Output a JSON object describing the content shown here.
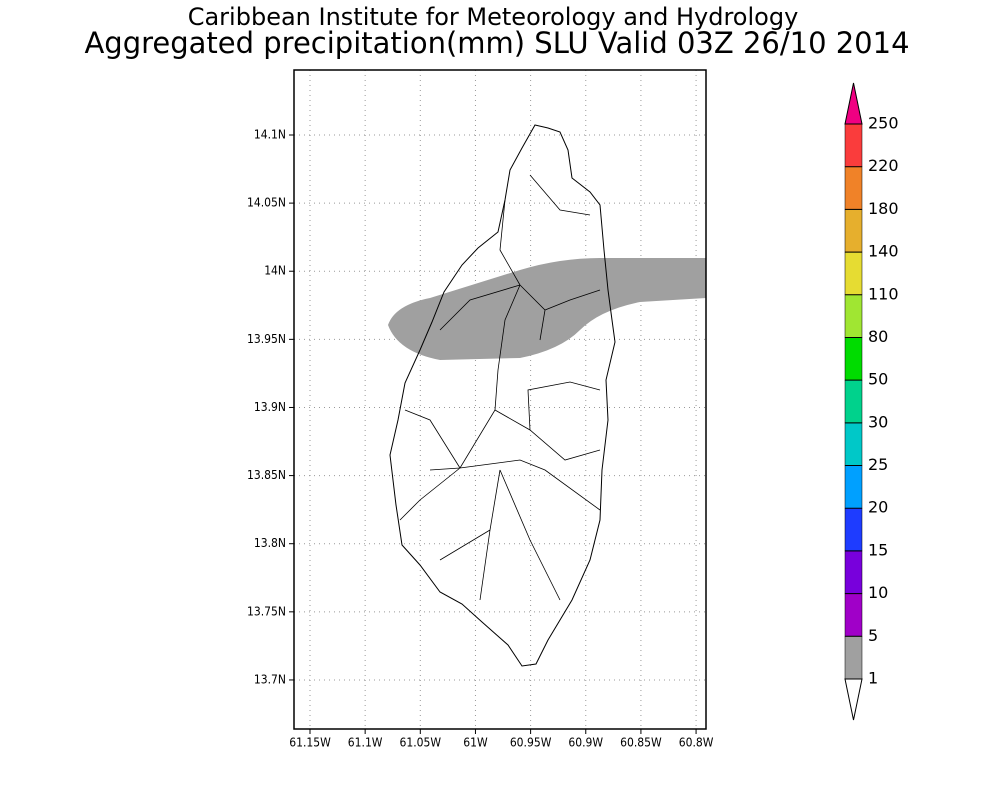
{
  "header": {
    "title": "Caribbean Institute for Meteorology and Hydrology",
    "subtitle": "Aggregated precipitation(mm) SLU Valid 03Z 26/10 2014"
  },
  "map": {
    "xlim": [
      -61.1645,
      -60.791
    ],
    "ylim": [
      13.664,
      14.1477
    ],
    "grid": true,
    "xticks": [
      {
        "value": -61.15,
        "label": "61.15W"
      },
      {
        "value": -61.1,
        "label": "61.1W"
      },
      {
        "value": -61.05,
        "label": "61.05W"
      },
      {
        "value": -61.0,
        "label": "61W"
      },
      {
        "value": -60.95,
        "label": "60.95W"
      },
      {
        "value": -60.9,
        "label": "60.9W"
      },
      {
        "value": -60.85,
        "label": "60.85W"
      },
      {
        "value": -60.8,
        "label": "60.8W"
      }
    ],
    "yticks": [
      {
        "value": 13.7,
        "label": "13.7N"
      },
      {
        "value": 13.75,
        "label": "13.75N"
      },
      {
        "value": 13.8,
        "label": "13.8N"
      },
      {
        "value": 13.85,
        "label": "13.85N"
      },
      {
        "value": 13.9,
        "label": "13.9N"
      },
      {
        "value": 13.95,
        "label": "13.95N"
      },
      {
        "value": 14.0,
        "label": "14N"
      },
      {
        "value": 14.05,
        "label": "14.05N"
      },
      {
        "value": 14.1,
        "label": "14.1N"
      }
    ]
  },
  "legend": {
    "levels": [
      1,
      5,
      10,
      15,
      20,
      25,
      30,
      50,
      80,
      110,
      140,
      180,
      220,
      250
    ],
    "colors": [
      "#ffffff",
      "#a0a0a0",
      "#a000c8",
      "#7800dc",
      "#1e3cff",
      "#00a0ff",
      "#00c8c8",
      "#00d28c",
      "#00dc00",
      "#a0e632",
      "#e6dc32",
      "#e6af2d",
      "#f08228",
      "#fa3c3c",
      "#f00082"
    ]
  }
}
